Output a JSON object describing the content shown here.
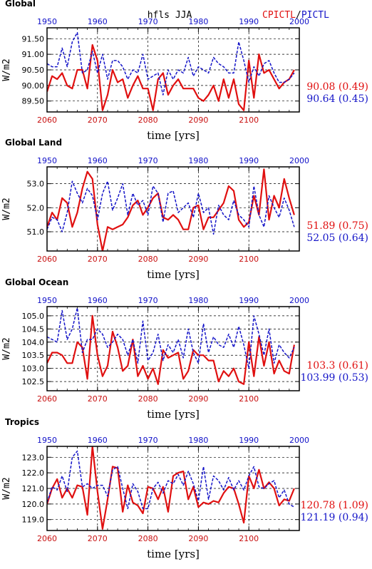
{
  "header": {
    "var_label": "hfls JJA",
    "legend_red": "CPICTL",
    "legend_sep": "/",
    "legend_blue": "PICTL",
    "color_red": "#e01010",
    "color_blue": "#1515c8"
  },
  "chart_data": [
    {
      "type": "line",
      "title": "Global",
      "xlabel": "time [yrs]",
      "ylabel": "W/m2",
      "top_ticks": [
        "1950",
        "1960",
        "1970",
        "1980",
        "1990",
        "2000"
      ],
      "bottom_ticks": [
        "2060",
        "2070",
        "2080",
        "2090",
        "2100"
      ],
      "y_ticks": [
        "89.50",
        "90.00",
        "90.50",
        "91.00",
        "91.50"
      ],
      "ylim": [
        89.15,
        91.85
      ],
      "grid": true,
      "series": [
        {
          "name": "CPICTL",
          "color": "#e01010",
          "stat_label": "90.08 (0.49)",
          "x_start": 2060,
          "values": [
            89.8,
            90.3,
            90.2,
            90.4,
            90.0,
            89.9,
            90.5,
            90.5,
            89.9,
            91.3,
            90.8,
            89.2,
            89.7,
            90.5,
            90.1,
            90.2,
            89.6,
            90.0,
            90.3,
            89.9,
            89.9,
            89.2,
            90.2,
            90.4,
            89.7,
            90.0,
            90.2,
            89.9,
            89.9,
            89.9,
            89.6,
            89.5,
            89.7,
            90.0,
            89.5,
            90.2,
            89.6,
            90.2,
            89.4,
            89.2,
            90.8,
            89.6,
            91.0,
            90.4,
            90.5,
            90.2,
            89.9,
            90.1,
            90.2,
            90.5
          ]
        },
        {
          "name": "PICTL",
          "color": "#1515c8",
          "stat_label": "90.64 (0.45)",
          "x_start": 1950,
          "values": [
            90.7,
            90.6,
            90.6,
            91.2,
            90.6,
            91.4,
            91.7,
            90.4,
            90.5,
            91.1,
            90.4,
            91.0,
            90.2,
            90.8,
            90.8,
            90.6,
            90.2,
            90.5,
            90.4,
            91.0,
            90.2,
            90.3,
            90.4,
            89.7,
            90.5,
            90.2,
            90.5,
            90.4,
            90.9,
            90.3,
            90.6,
            90.5,
            90.4,
            90.9,
            90.7,
            90.6,
            90.4,
            90.4,
            91.4,
            90.8,
            90.1,
            90.6,
            90.3,
            90.7,
            90.8,
            90.4,
            90.1,
            90.1,
            90.2,
            90.4
          ]
        }
      ]
    },
    {
      "type": "line",
      "title": "Global Land",
      "xlabel": "time [yrs]",
      "ylabel": "W/m2",
      "top_ticks": [
        "1950",
        "1960",
        "1970",
        "1980",
        "1990",
        "2000"
      ],
      "bottom_ticks": [
        "2060",
        "2070",
        "2080",
        "2090",
        "2100"
      ],
      "y_ticks": [
        "51.0",
        "52.0",
        "53.0"
      ],
      "ylim": [
        50.2,
        53.7
      ],
      "grid": true,
      "series": [
        {
          "name": "CPICTL",
          "color": "#e01010",
          "stat_label": "51.89 (0.75)",
          "x_start": 2060,
          "values": [
            51.2,
            51.8,
            51.5,
            52.4,
            52.2,
            51.2,
            51.8,
            52.8,
            53.5,
            53.2,
            51.3,
            50.2,
            51.2,
            51.1,
            51.2,
            51.3,
            51.6,
            52.1,
            52.3,
            51.7,
            52.0,
            52.4,
            52.6,
            51.6,
            51.5,
            51.7,
            51.5,
            51.1,
            51.1,
            52.0,
            52.1,
            51.1,
            51.6,
            51.6,
            51.9,
            52.2,
            52.9,
            52.7,
            51.5,
            51.2,
            51.4,
            52.5,
            51.7,
            53.6,
            51.5,
            52.5,
            52.0,
            53.2,
            52.4,
            51.7
          ]
        },
        {
          "name": "PICTL",
          "color": "#1515c8",
          "stat_label": "52.05 (0.64)",
          "x_start": 1950,
          "values": [
            51.1,
            51.6,
            51.5,
            51.0,
            51.8,
            53.1,
            52.6,
            52.2,
            52.8,
            52.5,
            51.5,
            52.6,
            53.1,
            51.9,
            52.4,
            53.0,
            51.7,
            52.6,
            52.1,
            52.3,
            51.7,
            52.9,
            52.6,
            51.4,
            52.6,
            52.7,
            51.8,
            52.0,
            52.2,
            51.6,
            52.6,
            51.8,
            52.0,
            50.9,
            52.1,
            51.7,
            51.5,
            52.3,
            51.7,
            51.5,
            51.2,
            52.9,
            51.7,
            51.2,
            52.5,
            52.0,
            51.6,
            52.4,
            51.9,
            51.2
          ]
        }
      ]
    },
    {
      "type": "line",
      "title": "Global Ocean",
      "xlabel": "time [yrs]",
      "ylabel": "W/m2",
      "top_ticks": [
        "1950",
        "1960",
        "1970",
        "1980",
        "1990",
        "2000"
      ],
      "bottom_ticks": [
        "2060",
        "2070",
        "2080",
        "2090",
        "2100"
      ],
      "y_ticks": [
        "102.5",
        "103.0",
        "103.5",
        "104.0",
        "104.5",
        "105.0"
      ],
      "ylim": [
        102.15,
        105.35
      ],
      "grid": true,
      "series": [
        {
          "name": "CPICTL",
          "color": "#e01010",
          "stat_label": "103.3 (0.61)",
          "x_start": 2060,
          "values": [
            103.2,
            103.6,
            103.6,
            103.5,
            103.2,
            103.2,
            104.0,
            103.8,
            102.6,
            105.0,
            103.5,
            102.7,
            103.1,
            104.4,
            103.8,
            102.9,
            103.1,
            104.1,
            102.7,
            103.1,
            102.6,
            103.0,
            102.4,
            103.7,
            103.4,
            103.5,
            103.6,
            102.6,
            102.9,
            103.7,
            103.5,
            103.5,
            103.3,
            103.3,
            102.5,
            102.9,
            102.7,
            103.0,
            102.5,
            102.4,
            104.0,
            102.7,
            104.2,
            103.1,
            104.0,
            102.8,
            103.3,
            102.9,
            102.8,
            103.9
          ]
        },
        {
          "name": "PICTL",
          "color": "#1515c8",
          "stat_label": "103.99 (0.53)",
          "x_start": 1950,
          "values": [
            104.2,
            104.1,
            104.0,
            105.2,
            104.1,
            104.5,
            105.3,
            103.6,
            104.1,
            104.1,
            104.5,
            104.3,
            103.8,
            104.0,
            104.3,
            104.1,
            103.5,
            104.1,
            103.2,
            104.8,
            103.3,
            103.6,
            104.3,
            103.3,
            103.9,
            103.6,
            104.1,
            103.4,
            104.5,
            103.6,
            103.2,
            104.7,
            103.6,
            104.2,
            103.9,
            103.8,
            104.3,
            103.8,
            104.6,
            103.9,
            103.0,
            105.0,
            104.3,
            103.5,
            104.5,
            103.2,
            103.9,
            103.6,
            103.4,
            103.8
          ]
        }
      ]
    },
    {
      "type": "line",
      "title": "Tropics",
      "xlabel": "time [yrs]",
      "ylabel": "W/m2",
      "top_ticks": [
        "1950",
        "1960",
        "1970",
        "1980",
        "1990",
        "2000"
      ],
      "bottom_ticks": [
        "2060",
        "2070",
        "2080",
        "2090",
        "2100"
      ],
      "y_ticks": [
        "119.0",
        "120.0",
        "121.0",
        "122.0",
        "123.0"
      ],
      "ylim": [
        118.3,
        123.7
      ],
      "grid": true,
      "series": [
        {
          "name": "CPICTL",
          "color": "#e01010",
          "stat_label": "120.78 (1.09)",
          "x_start": 2060,
          "values": [
            120.0,
            121.0,
            121.6,
            120.4,
            121.0,
            120.4,
            121.2,
            121.1,
            119.3,
            123.7,
            120.8,
            118.4,
            120.3,
            122.4,
            122.3,
            119.5,
            121.2,
            120.1,
            119.9,
            119.4,
            121.1,
            121.0,
            120.3,
            121.1,
            119.5,
            121.8,
            122.0,
            122.1,
            120.3,
            121.1,
            119.8,
            120.1,
            120.0,
            120.2,
            120.1,
            120.7,
            121.1,
            121.0,
            120.0,
            118.8,
            121.8,
            121.0,
            122.2,
            121.0,
            121.4,
            121.0,
            119.9,
            120.3,
            120.2,
            121.0
          ]
        },
        {
          "name": "PICTL",
          "color": "#1515c8",
          "stat_label": "121.19 (0.94)",
          "x_start": 1950,
          "values": [
            120.1,
            121.1,
            120.9,
            121.8,
            120.8,
            123.0,
            123.4,
            121.1,
            121.3,
            121.0,
            121.2,
            121.2,
            120.5,
            122.2,
            122.4,
            121.0,
            119.7,
            121.3,
            120.8,
            119.7,
            119.7,
            121.0,
            121.4,
            120.7,
            121.5,
            121.3,
            121.9,
            121.2,
            122.1,
            121.3,
            120.2,
            122.4,
            120.3,
            121.8,
            121.5,
            120.9,
            121.7,
            120.9,
            121.5,
            120.9,
            121.8,
            122.4,
            121.1,
            121.0,
            121.3,
            121.5,
            120.4,
            120.9,
            120.0,
            119.8
          ]
        }
      ]
    }
  ]
}
